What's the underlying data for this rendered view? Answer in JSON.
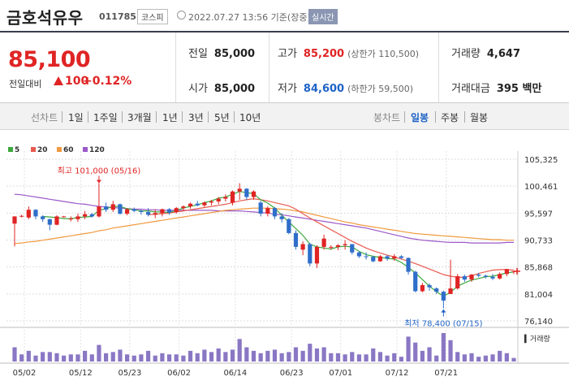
{
  "header": {
    "name": "금호석유우",
    "code": "011785",
    "market": "코스피",
    "datetime": "2022.07.27 13:56 기준(장중)",
    "realtime": "실시간"
  },
  "summary": {
    "price": "85,100",
    "change_label": "전일대비",
    "change_value": "100",
    "change_pct": "+0.12%",
    "prev_close_label": "전일",
    "prev_close": "85,000",
    "open_label": "시가",
    "open": "85,000",
    "high_label": "고가",
    "high": "85,200",
    "upper_limit": "(상한가 110,500)",
    "low_label": "저가",
    "low": "84,600",
    "lower_limit": "(하한가 59,500)",
    "volume_label": "거래량",
    "volume": "4,647",
    "amount_label": "거래대금",
    "amount": "395 백만"
  },
  "toolbar": {
    "line_label": "선차트",
    "periods": [
      "1일",
      "1주일",
      "3개월",
      "1년",
      "3년",
      "5년",
      "10년"
    ],
    "candle_label": "봉차트",
    "candle_periods": [
      "일봉",
      "주봉",
      "월봉"
    ],
    "candle_active": "일봉"
  },
  "colors": {
    "up": "#e02424",
    "down": "#2f6ec9",
    "ma5": "#3ca83c",
    "ma20": "#e85a4f",
    "ma60": "#f09a3e",
    "ma120": "#9b59c9"
  },
  "chart_data": {
    "type": "candlestick",
    "ylim": [
      76140,
      105325
    ],
    "y_ticks": [
      "105,325",
      "100,461",
      "95,597",
      "90,733",
      "85,868",
      "81,004",
      "76,140"
    ],
    "x_ticks": [
      "05/02",
      "05/12",
      "05/23",
      "06/02",
      "06/14",
      "06/23",
      "07/01",
      "07/12",
      "07/21"
    ],
    "legend": [
      "5",
      "20",
      "60",
      "120"
    ],
    "volume_label": "거래량",
    "annotations": {
      "high": "최고 101,000 (05/16)",
      "low": "최저 78,400 (07/15)"
    },
    "candles": [
      {
        "o": 93700,
        "h": 95000,
        "l": 89600,
        "c": 95000
      },
      {
        "o": 95000,
        "h": 95300,
        "l": 94800,
        "c": 95100
      },
      {
        "o": 94800,
        "h": 96800,
        "l": 94500,
        "c": 96200
      },
      {
        "o": 96200,
        "h": 96300,
        "l": 94500,
        "c": 95000
      },
      {
        "o": 95000,
        "h": 95200,
        "l": 94000,
        "c": 94500
      },
      {
        "o": 94500,
        "h": 94600,
        "l": 92500,
        "c": 93500
      },
      {
        "o": 93500,
        "h": 95200,
        "l": 93400,
        "c": 95000
      },
      {
        "o": 95000,
        "h": 95100,
        "l": 94800,
        "c": 95000
      },
      {
        "o": 94600,
        "h": 95000,
        "l": 94100,
        "c": 94600
      },
      {
        "o": 94500,
        "h": 95500,
        "l": 94000,
        "c": 95000
      },
      {
        "o": 95000,
        "h": 96000,
        "l": 94500,
        "c": 95400
      },
      {
        "o": 95400,
        "h": 95600,
        "l": 94800,
        "c": 95000
      },
      {
        "o": 95000,
        "h": 101000,
        "l": 94800,
        "c": 96800
      },
      {
        "o": 96800,
        "h": 97500,
        "l": 95800,
        "c": 96200
      },
      {
        "o": 96200,
        "h": 97800,
        "l": 95800,
        "c": 97200
      },
      {
        "o": 97200,
        "h": 97300,
        "l": 95300,
        "c": 95500
      },
      {
        "o": 95500,
        "h": 96500,
        "l": 95200,
        "c": 96300
      },
      {
        "o": 96300,
        "h": 96600,
        "l": 95800,
        "c": 96000
      },
      {
        "o": 96000,
        "h": 96200,
        "l": 95300,
        "c": 95800
      },
      {
        "o": 95800,
        "h": 96500,
        "l": 95000,
        "c": 95300
      },
      {
        "o": 95300,
        "h": 96300,
        "l": 94700,
        "c": 95600
      },
      {
        "o": 95600,
        "h": 96400,
        "l": 95000,
        "c": 96300
      },
      {
        "o": 96300,
        "h": 96500,
        "l": 95300,
        "c": 95700
      },
      {
        "o": 95800,
        "h": 96700,
        "l": 95500,
        "c": 96500
      },
      {
        "o": 96500,
        "h": 97000,
        "l": 96000,
        "c": 96800
      },
      {
        "o": 96800,
        "h": 97500,
        "l": 96400,
        "c": 97300
      },
      {
        "o": 97300,
        "h": 97800,
        "l": 96800,
        "c": 97000
      },
      {
        "o": 97000,
        "h": 97700,
        "l": 96700,
        "c": 97500
      },
      {
        "o": 97500,
        "h": 98000,
        "l": 97000,
        "c": 97700
      },
      {
        "o": 97700,
        "h": 98500,
        "l": 97200,
        "c": 98200
      },
      {
        "o": 98200,
        "h": 99000,
        "l": 97700,
        "c": 98500
      },
      {
        "o": 97500,
        "h": 99700,
        "l": 97000,
        "c": 99500
      },
      {
        "o": 99500,
        "h": 101000,
        "l": 98000,
        "c": 100000
      },
      {
        "o": 100000,
        "h": 100100,
        "l": 98000,
        "c": 98500
      },
      {
        "o": 98500,
        "h": 99700,
        "l": 98000,
        "c": 99500
      },
      {
        "o": 97500,
        "h": 97800,
        "l": 95000,
        "c": 95500
      },
      {
        "o": 95500,
        "h": 96800,
        "l": 95000,
        "c": 96500
      },
      {
        "o": 96500,
        "h": 96700,
        "l": 94500,
        "c": 95000
      },
      {
        "o": 95000,
        "h": 95600,
        "l": 93900,
        "c": 94500
      },
      {
        "o": 94500,
        "h": 94700,
        "l": 91800,
        "c": 92000
      },
      {
        "o": 92000,
        "h": 92500,
        "l": 89000,
        "c": 89500
      },
      {
        "o": 89000,
        "h": 90500,
        "l": 88000,
        "c": 90000
      },
      {
        "o": 90000,
        "h": 90200,
        "l": 86000,
        "c": 86500
      },
      {
        "o": 86500,
        "h": 89800,
        "l": 85700,
        "c": 89500
      },
      {
        "o": 89500,
        "h": 91700,
        "l": 89000,
        "c": 91000
      },
      {
        "o": 89500,
        "h": 89800,
        "l": 89000,
        "c": 89500
      },
      {
        "o": 89500,
        "h": 90000,
        "l": 88900,
        "c": 89800
      },
      {
        "o": 89800,
        "h": 90700,
        "l": 89000,
        "c": 90000
      },
      {
        "o": 90000,
        "h": 90000,
        "l": 88100,
        "c": 88500
      },
      {
        "o": 88500,
        "h": 88700,
        "l": 87500,
        "c": 87800
      },
      {
        "o": 87800,
        "h": 88500,
        "l": 87200,
        "c": 87700
      },
      {
        "o": 87700,
        "h": 87900,
        "l": 86700,
        "c": 86900
      },
      {
        "o": 86900,
        "h": 88000,
        "l": 86800,
        "c": 87800
      },
      {
        "o": 87800,
        "h": 88000,
        "l": 87000,
        "c": 87400
      },
      {
        "o": 87400,
        "h": 88200,
        "l": 87000,
        "c": 87800
      },
      {
        "o": 87800,
        "h": 88000,
        "l": 87300,
        "c": 87500
      },
      {
        "o": 87500,
        "h": 87600,
        "l": 84500,
        "c": 85000
      },
      {
        "o": 85000,
        "h": 85200,
        "l": 81300,
        "c": 81500
      },
      {
        "o": 81500,
        "h": 83000,
        "l": 81300,
        "c": 82600
      },
      {
        "o": 82600,
        "h": 82900,
        "l": 81600,
        "c": 82200
      },
      {
        "o": 82000,
        "h": 82200,
        "l": 81000,
        "c": 81400
      },
      {
        "o": 81400,
        "h": 81600,
        "l": 78400,
        "c": 79800
      },
      {
        "o": 81000,
        "h": 87200,
        "l": 81000,
        "c": 82000
      },
      {
        "o": 82000,
        "h": 84600,
        "l": 81800,
        "c": 84200
      },
      {
        "o": 84200,
        "h": 84500,
        "l": 83200,
        "c": 83600
      },
      {
        "o": 83600,
        "h": 84600,
        "l": 83200,
        "c": 84500
      },
      {
        "o": 84500,
        "h": 84800,
        "l": 84000,
        "c": 84300
      },
      {
        "o": 84300,
        "h": 84500,
        "l": 83800,
        "c": 84100
      },
      {
        "o": 84100,
        "h": 84600,
        "l": 83500,
        "c": 83800
      },
      {
        "o": 83800,
        "h": 84900,
        "l": 83600,
        "c": 84600
      },
      {
        "o": 84600,
        "h": 85500,
        "l": 84200,
        "c": 85500
      },
      {
        "o": 85000,
        "h": 85200,
        "l": 84600,
        "c": 85100
      }
    ],
    "volume": [
      12,
      6,
      9,
      5,
      8,
      8,
      7,
      5,
      6,
      6,
      9,
      6,
      14,
      7,
      8,
      10,
      6,
      5,
      6,
      9,
      5,
      7,
      6,
      6,
      5,
      9,
      7,
      10,
      8,
      11,
      8,
      10,
      19,
      12,
      9,
      7,
      9,
      10,
      7,
      8,
      12,
      9,
      15,
      11,
      12,
      7,
      7,
      6,
      8,
      6,
      6,
      11,
      8,
      5,
      7,
      4,
      21,
      16,
      9,
      12,
      5,
      24,
      18,
      8,
      6,
      7,
      4,
      5,
      6,
      9,
      7,
      3
    ],
    "ma5": [
      null,
      null,
      null,
      null,
      95000,
      94900,
      94800,
      94600,
      94600,
      94800,
      94900,
      95000,
      96100,
      96400,
      96800,
      96800,
      96400,
      96200,
      96000,
      96000,
      95800,
      95800,
      95700,
      96100,
      96500,
      96800,
      97100,
      97500,
      97800,
      98300,
      98500,
      99000,
      99500,
      99300,
      99100,
      98000,
      97400,
      96500,
      95200,
      94000,
      92800,
      91600,
      90000,
      89500,
      89300,
      89100,
      89500,
      89600,
      89500,
      88700,
      88100,
      87800,
      87600,
      87400,
      87300,
      86700,
      85800,
      84800,
      83600,
      82400,
      81400,
      80600,
      81300,
      82400,
      83000,
      83500,
      83800,
      84100,
      84200,
      84500,
      84800,
      85000
    ],
    "ma20": [
      null,
      null,
      null,
      null,
      null,
      null,
      null,
      null,
      null,
      null,
      null,
      null,
      null,
      null,
      null,
      null,
      null,
      null,
      null,
      95300,
      95400,
      95500,
      95600,
      95800,
      96000,
      96200,
      96400,
      96600,
      96800,
      97000,
      97200,
      97500,
      97800,
      98000,
      98200,
      98000,
      97800,
      97500,
      97200,
      96900,
      96300,
      95500,
      94700,
      94000,
      93300,
      92600,
      91900,
      91200,
      90500,
      89900,
      89300,
      88800,
      88400,
      88000,
      87700,
      87300,
      86900,
      86500,
      86000,
      85500,
      85000,
      84500,
      84200,
      84000,
      84000,
      84300,
      84700,
      85000,
      85300,
      85400,
      85400,
      85300
    ],
    "ma60": [
      90100,
      90200,
      90400,
      90500,
      90700,
      90900,
      91100,
      91300,
      91500,
      91700,
      91900,
      92100,
      92400,
      92600,
      92900,
      93100,
      93300,
      93500,
      93700,
      93900,
      94100,
      94300,
      94500,
      94700,
      94900,
      95100,
      95300,
      95500,
      95700,
      95900,
      96100,
      96200,
      96300,
      96400,
      96500,
      96500,
      96500,
      96400,
      96300,
      96200,
      96000,
      95800,
      95500,
      95200,
      94900,
      94600,
      94300,
      94000,
      93800,
      93500,
      93300,
      93100,
      92900,
      92700,
      92500,
      92300,
      92100,
      91900,
      91800,
      91700,
      91600,
      91500,
      91400,
      91300,
      91200,
      91100,
      91000,
      90900,
      90800,
      90800,
      90700,
      90700
    ],
    "ma120": [
      99000,
      98900,
      98700,
      98500,
      98300,
      98100,
      97900,
      97700,
      97500,
      97300,
      97200,
      97000,
      96800,
      96700,
      96600,
      96500,
      96400,
      96300,
      96300,
      96200,
      96200,
      96100,
      96100,
      96100,
      96100,
      96100,
      96100,
      96100,
      96100,
      96000,
      96000,
      96000,
      96000,
      95900,
      95800,
      95700,
      95600,
      95400,
      95300,
      95100,
      94900,
      94700,
      94500,
      94300,
      94100,
      93900,
      93700,
      93500,
      93300,
      93100,
      92900,
      92600,
      92300,
      92000,
      91700,
      91400,
      91100,
      90900,
      90700,
      90600,
      90500,
      90400,
      90300,
      90300,
      90300,
      90200,
      90200,
      90200,
      90200,
      90200,
      90300,
      90300
    ]
  }
}
